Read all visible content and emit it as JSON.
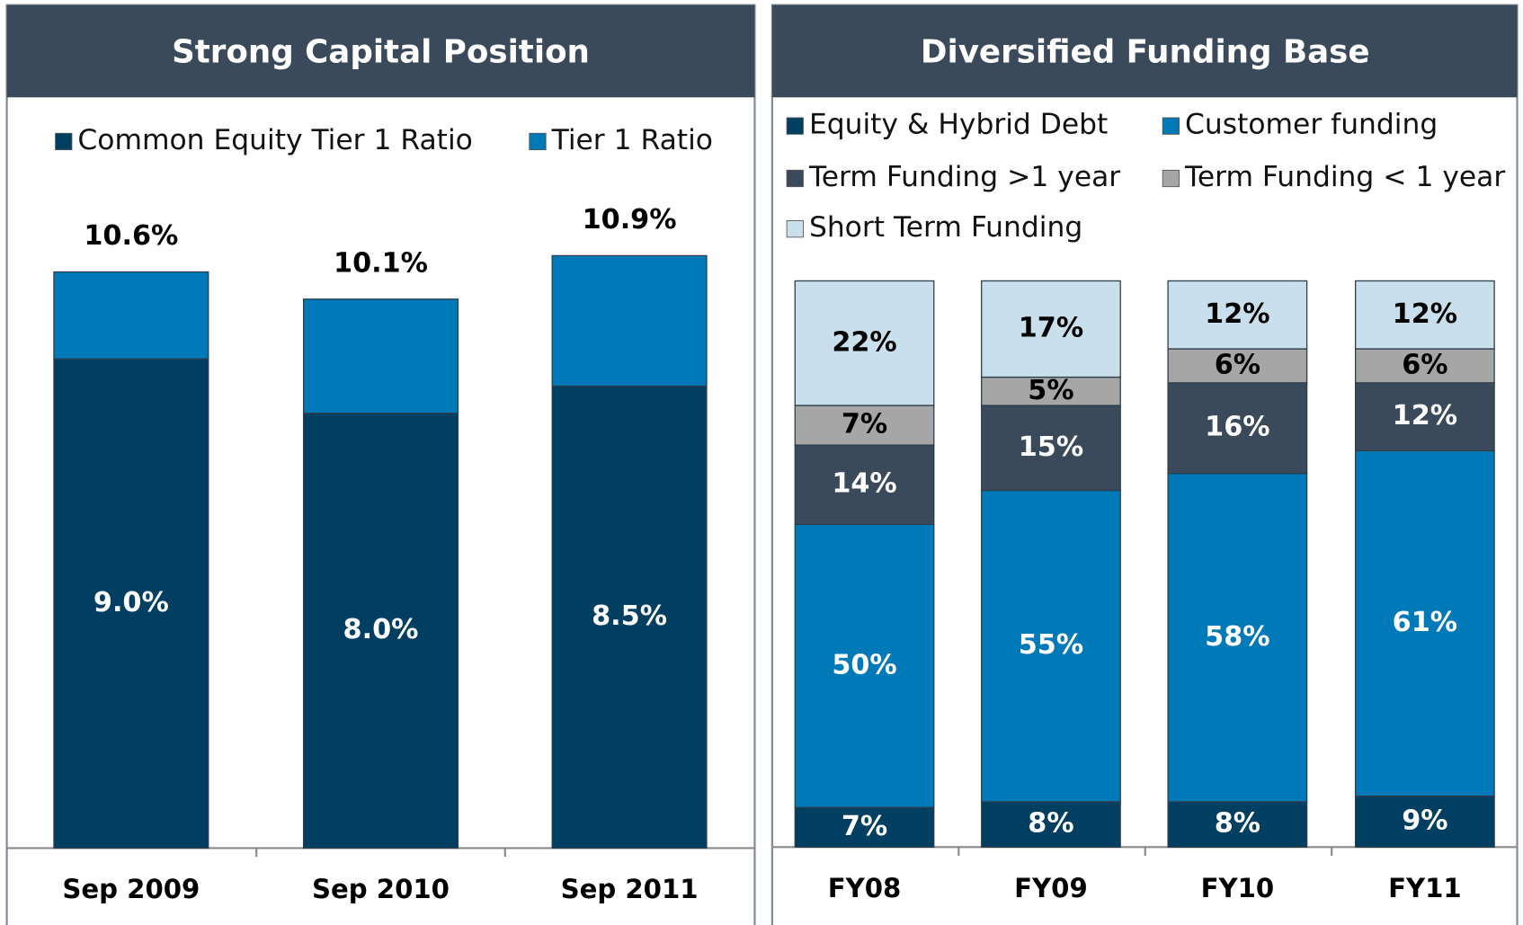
{
  "chart_data": [
    {
      "type": "stacked_bar",
      "title": "Strong Capital Position",
      "categories": [
        "Sep 2009",
        "Sep 2010",
        "Sep 2011"
      ],
      "series": [
        {
          "name": "Common Equity Tier 1 Ratio",
          "color": "#003f62",
          "values": [
            9.0,
            8.0,
            8.5
          ],
          "value_labels": [
            "9.0%",
            "8.0%",
            "8.5%"
          ]
        },
        {
          "name": "Tier 1 Ratio",
          "color": "#0079b8",
          "values": [
            1.6,
            2.1,
            2.4
          ]
        }
      ],
      "totals": [
        10.6,
        10.1,
        10.9
      ],
      "total_labels": [
        "10.6%",
        "10.1%",
        "10.9%"
      ]
    },
    {
      "type": "stacked_bar",
      "title": "Diversified Funding Base",
      "categories": [
        "FY08",
        "FY09",
        "FY10",
        "FY11"
      ],
      "series": [
        {
          "name": "Equity & Hybrid Debt",
          "color": "#003f62",
          "values": [
            7,
            8,
            8,
            9
          ],
          "value_labels": [
            "7%",
            "8%",
            "8%",
            "9%"
          ]
        },
        {
          "name": "Customer funding",
          "color": "#0079b8",
          "values": [
            50,
            55,
            58,
            61
          ],
          "value_labels": [
            "50%",
            "55%",
            "58%",
            "61%"
          ]
        },
        {
          "name": "Term Funding >1 year",
          "color": "#3b4a5a",
          "values": [
            14,
            15,
            16,
            12
          ],
          "value_labels": [
            "14%",
            "15%",
            "16%",
            "12%"
          ]
        },
        {
          "name": "Term Funding < 1 year",
          "color": "#a6a6a6",
          "values": [
            7,
            5,
            6,
            6
          ],
          "value_labels": [
            "7%",
            "5%",
            "6%",
            "6%"
          ]
        },
        {
          "name": "Short Term Funding",
          "color": "#c9e0ec",
          "values": [
            22,
            17,
            12,
            12
          ],
          "value_labels": [
            "22%",
            "17%",
            "12%",
            "12%"
          ]
        }
      ]
    }
  ]
}
